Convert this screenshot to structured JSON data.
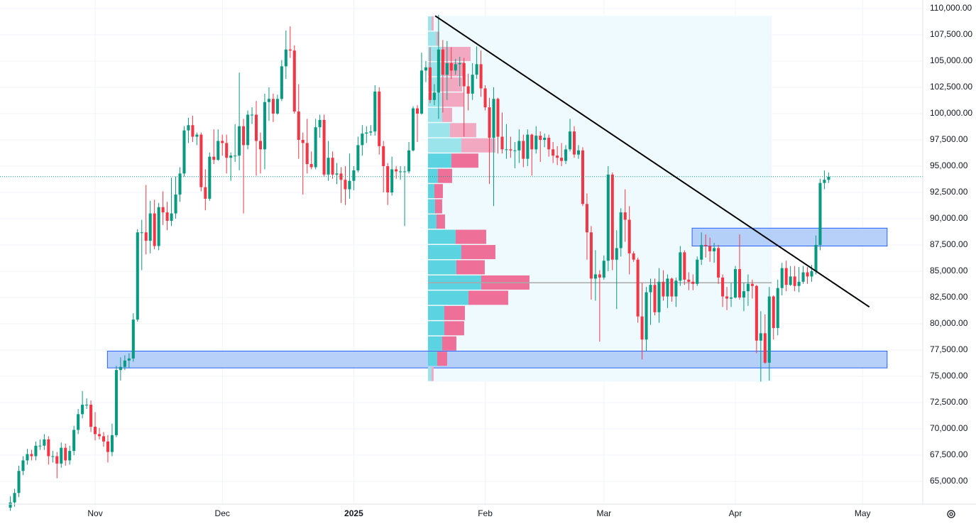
{
  "chart_data": {
    "type": "candlestick",
    "up_color": "#089981",
    "down_color": "#f23645",
    "xlim": [
      -2.44,
      215.2
    ],
    "xticks": [
      {
        "value": 20,
        "label": "Nov"
      },
      {
        "value": 50,
        "label": "Dec"
      },
      {
        "value": 81,
        "label": "2025"
      },
      {
        "value": 112,
        "label": "Feb"
      },
      {
        "value": 140,
        "label": "Mar"
      },
      {
        "value": 171,
        "label": "Apr"
      },
      {
        "value": 201,
        "label": "May"
      }
    ],
    "ylim": [
      62840,
      110810
    ],
    "yticks": [
      {
        "value": 65000,
        "label": "65,000.00"
      },
      {
        "value": 67500,
        "label": "67,500.00"
      },
      {
        "value": 70000,
        "label": "70,000.00"
      },
      {
        "value": 72500,
        "label": "72,500.00"
      },
      {
        "value": 75000,
        "label": "75,000.00"
      },
      {
        "value": 77500,
        "label": "77,500.00"
      },
      {
        "value": 80000,
        "label": "80,000.00"
      },
      {
        "value": 82500,
        "label": "82,500.00"
      },
      {
        "value": 85000,
        "label": "85,000.00"
      },
      {
        "value": 87500,
        "label": "87,500.00"
      },
      {
        "value": 90000,
        "label": "90,000.00"
      },
      {
        "value": 92500,
        "label": "92,500.00"
      },
      {
        "value": 95000,
        "label": "95,000.00"
      },
      {
        "value": 97500,
        "label": "97,500.00"
      },
      {
        "value": 100000,
        "label": "100,000.00"
      },
      {
        "value": 102500,
        "label": "102,500.00"
      },
      {
        "value": 105000,
        "label": "105,000.00"
      },
      {
        "value": 107500,
        "label": "107,500.00"
      },
      {
        "value": 110000,
        "label": "110,000.00"
      }
    ],
    "grid": true,
    "last_price": 94000,
    "candles": [
      [
        62500,
        63600,
        62200,
        63000
      ],
      [
        63000,
        64300,
        62600,
        63900
      ],
      [
        63900,
        66500,
        63500,
        66000
      ],
      [
        66000,
        67400,
        65600,
        67000
      ],
      [
        67000,
        68100,
        66600,
        67600
      ],
      [
        67600,
        68000,
        67000,
        67400
      ],
      [
        67400,
        68800,
        67000,
        68400
      ],
      [
        68400,
        69000,
        68000,
        68400
      ],
      [
        68400,
        69500,
        68000,
        69000
      ],
      [
        69000,
        69300,
        66600,
        67400
      ],
      [
        67400,
        67900,
        66800,
        67400
      ],
      [
        67400,
        67800,
        65300,
        66700
      ],
      [
        66700,
        68700,
        66300,
        68200
      ],
      [
        68200,
        68600,
        66500,
        67000
      ],
      [
        67000,
        68400,
        66600,
        67900
      ],
      [
        67900,
        70300,
        67500,
        69900
      ],
      [
        69900,
        71900,
        69500,
        71400
      ],
      [
        71400,
        73600,
        71000,
        72300
      ],
      [
        72300,
        72900,
        71900,
        72300
      ],
      [
        72300,
        72700,
        69700,
        70200
      ],
      [
        70200,
        71600,
        68900,
        69500
      ],
      [
        69500,
        70100,
        69000,
        69300
      ],
      [
        69300,
        69700,
        68300,
        68800
      ],
      [
        68800,
        69400,
        66800,
        67800
      ],
      [
        67800,
        70500,
        67400,
        69400
      ],
      [
        69400,
        76000,
        69200,
        75600
      ],
      [
        75600,
        76800,
        74600,
        75900
      ],
      [
        75900,
        77000,
        75600,
        76500
      ],
      [
        76500,
        77200,
        75800,
        76700
      ],
      [
        76700,
        81000,
        76400,
        80400
      ],
      [
        80400,
        89000,
        80200,
        88700
      ],
      [
        88700,
        89900,
        85100,
        88700
      ],
      [
        88700,
        93200,
        86600,
        87900
      ],
      [
        87900,
        91700,
        86700,
        90500
      ],
      [
        90500,
        91800,
        87100,
        87400
      ],
      [
        87400,
        91500,
        87000,
        91100
      ],
      [
        91100,
        92600,
        89400,
        90600
      ],
      [
        90600,
        91600,
        88900,
        89800
      ],
      [
        89800,
        93900,
        89300,
        90500
      ],
      [
        90500,
        94000,
        90000,
        92300
      ],
      [
        92300,
        94900,
        91600,
        94300
      ],
      [
        94300,
        98800,
        94000,
        98400
      ],
      [
        98400,
        99600,
        97200,
        98900
      ],
      [
        98900,
        99800,
        97300,
        97800
      ],
      [
        97800,
        98200,
        97000,
        98000
      ],
      [
        98000,
        98200,
        92600,
        93000
      ],
      [
        93000,
        94700,
        90800,
        91900
      ],
      [
        91900,
        96300,
        91700,
        95900
      ],
      [
        95900,
        98500,
        95200,
        95600
      ],
      [
        95600,
        98500,
        95500,
        97400
      ],
      [
        97400,
        98000,
        96000,
        97200
      ],
      [
        97200,
        98000,
        94300,
        95800
      ],
      [
        95800,
        96300,
        93600,
        96000
      ],
      [
        96000,
        99000,
        95400,
        96000
      ],
      [
        96000,
        103900,
        94600,
        98800
      ],
      [
        98800,
        99500,
        90500,
        97000
      ],
      [
        97000,
        100300,
        96600,
        99900
      ],
      [
        99900,
        100600,
        99000,
        99900
      ],
      [
        99900,
        101200,
        94100,
        97400
      ],
      [
        97400,
        98200,
        94300,
        96600
      ],
      [
        96600,
        101900,
        94700,
        101100
      ],
      [
        101100,
        102500,
        99300,
        101400
      ],
      [
        101400,
        101900,
        99200,
        100000
      ],
      [
        100000,
        101800,
        99900,
        101400
      ],
      [
        101400,
        105100,
        101200,
        104500
      ],
      [
        104500,
        107900,
        103300,
        106100
      ],
      [
        106100,
        108300,
        105300,
        106000
      ],
      [
        106000,
        106500,
        100000,
        100200
      ],
      [
        100200,
        102800,
        95700,
        97500
      ],
      [
        97500,
        98200,
        92300,
        97200
      ],
      [
        97200,
        99500,
        94300,
        95200
      ],
      [
        95200,
        96400,
        94700,
        94900
      ],
      [
        94900,
        99500,
        94700,
        98700
      ],
      [
        98700,
        99900,
        97700,
        99400
      ],
      [
        99400,
        99900,
        94000,
        94200
      ],
      [
        94200,
        97400,
        93600,
        95800
      ],
      [
        95800,
        96400,
        93800,
        94200
      ],
      [
        94200,
        95300,
        93300,
        94300
      ],
      [
        94300,
        94900,
        91500,
        93700
      ],
      [
        93700,
        95000,
        91300,
        92800
      ],
      [
        92800,
        96200,
        91900,
        93600
      ],
      [
        93600,
        95000,
        92700,
        94600
      ],
      [
        94600,
        97800,
        94400,
        97000
      ],
      [
        97000,
        98900,
        96000,
        98100
      ],
      [
        98100,
        98800,
        97200,
        98200
      ],
      [
        98200,
        98900,
        97900,
        98300
      ],
      [
        98300,
        102700,
        97900,
        102100
      ],
      [
        102100,
        102500,
        96100,
        96900
      ],
      [
        96900,
        97400,
        92500,
        95000
      ],
      [
        95000,
        95300,
        91300,
        92500
      ],
      [
        92500,
        95900,
        92200,
        94700
      ],
      [
        94700,
        95000,
        93800,
        94500
      ],
      [
        94500,
        95000,
        93700,
        94500
      ],
      [
        94500,
        95000,
        89300,
        94500
      ],
      [
        94500,
        97300,
        94300,
        96500
      ],
      [
        96500,
        100700,
        96400,
        100500
      ],
      [
        100500,
        100800,
        97300,
        100000
      ],
      [
        100000,
        105800,
        99900,
        104100
      ],
      [
        104100,
        105000,
        103000,
        104400
      ],
      [
        104400,
        106300,
        101000,
        101300
      ],
      [
        101300,
        102800,
        100800,
        102000
      ],
      [
        102000,
        109400,
        99500,
        106100
      ],
      [
        106100,
        107000,
        100100,
        103700
      ],
      [
        103700,
        106900,
        101300,
        104800
      ],
      [
        104800,
        106300,
        103300,
        104100
      ],
      [
        104100,
        105200,
        103700,
        104700
      ],
      [
        104700,
        105400,
        102600,
        104800
      ],
      [
        104800,
        105300,
        97800,
        102600
      ],
      [
        102600,
        103800,
        100300,
        101900
      ],
      [
        101900,
        104800,
        101300,
        103700
      ],
      [
        103700,
        106400,
        103300,
        104700
      ],
      [
        104700,
        106000,
        101600,
        102400
      ],
      [
        102400,
        102700,
        100300,
        100600
      ],
      [
        100600,
        101500,
        93300,
        97700
      ],
      [
        97700,
        102500,
        91200,
        101400
      ],
      [
        101400,
        101500,
        96200,
        97800
      ],
      [
        97800,
        100100,
        96200,
        96600
      ],
      [
        96600,
        99000,
        95700,
        96600
      ],
      [
        96600,
        97800,
        95800,
        96500
      ],
      [
        96500,
        97300,
        94800,
        96500
      ],
      [
        96500,
        98500,
        95300,
        97400
      ],
      [
        97400,
        98000,
        94900,
        95700
      ],
      [
        95700,
        98500,
        95000,
        98000
      ],
      [
        98000,
        98100,
        94100,
        96600
      ],
      [
        96600,
        98800,
        96200,
        97900
      ],
      [
        97900,
        98300,
        95400,
        97500
      ],
      [
        97500,
        98100,
        96800,
        97700
      ],
      [
        97700,
        98000,
        95900,
        96600
      ],
      [
        96600,
        97300,
        95300,
        96000
      ],
      [
        96000,
        96900,
        95100,
        95800
      ],
      [
        95800,
        97200,
        95000,
        95500
      ],
      [
        95500,
        97000,
        95200,
        96600
      ],
      [
        96600,
        99500,
        96400,
        98300
      ],
      [
        98300,
        98800,
        95800,
        96100
      ],
      [
        96100,
        97000,
        95700,
        96500
      ],
      [
        96500,
        96800,
        91200,
        91400
      ],
      [
        91400,
        92400,
        86100,
        88700
      ],
      [
        88700,
        89300,
        82300,
        84300
      ],
      [
        84300,
        87000,
        82200,
        84700
      ],
      [
        84700,
        85100,
        78300,
        84400
      ],
      [
        84400,
        86500,
        84200,
        86000
      ],
      [
        86000,
        95000,
        85000,
        94200
      ],
      [
        94200,
        94400,
        85100,
        86100
      ],
      [
        86100,
        88900,
        81400,
        87200
      ],
      [
        87200,
        91000,
        86400,
        90600
      ],
      [
        90600,
        92800,
        87800,
        89900
      ],
      [
        89900,
        91200,
        84700,
        86700
      ],
      [
        86700,
        86900,
        85900,
        86100
      ],
      [
        86100,
        86300,
        80100,
        80700
      ],
      [
        80700,
        83900,
        76600,
        78500
      ],
      [
        78500,
        83500,
        77400,
        83000
      ],
      [
        83000,
        84300,
        79900,
        83700
      ],
      [
        83700,
        84300,
        80800,
        81100
      ],
      [
        81100,
        85300,
        80100,
        84000
      ],
      [
        84000,
        85100,
        82200,
        82600
      ],
      [
        82600,
        84700,
        81500,
        84300
      ],
      [
        84300,
        84400,
        82100,
        82600
      ],
      [
        82600,
        84400,
        81600,
        84100
      ],
      [
        84100,
        87400,
        83600,
        86800
      ],
      [
        86800,
        87000,
        83700,
        84200
      ],
      [
        84200,
        84900,
        83200,
        84000
      ],
      [
        84000,
        84700,
        83200,
        83800
      ],
      [
        83800,
        86400,
        83600,
        86100
      ],
      [
        86100,
        88700,
        85600,
        87500
      ],
      [
        87500,
        88500,
        86300,
        87400
      ],
      [
        87400,
        88200,
        85900,
        86900
      ],
      [
        86900,
        87700,
        85800,
        87200
      ],
      [
        87200,
        87500,
        83800,
        84400
      ],
      [
        84400,
        84700,
        81600,
        82600
      ],
      [
        82600,
        83500,
        81300,
        82400
      ],
      [
        82400,
        83900,
        81600,
        82500
      ],
      [
        82500,
        85500,
        82400,
        85200
      ],
      [
        85200,
        88500,
        82300,
        82500
      ],
      [
        82500,
        83900,
        81200,
        83100
      ],
      [
        83100,
        84700,
        81700,
        83800
      ],
      [
        83800,
        84200,
        82400,
        83600
      ],
      [
        83600,
        83700,
        77200,
        78400
      ],
      [
        78400,
        81200,
        74500,
        79100
      ],
      [
        79100,
        80900,
        76200,
        76300
      ],
      [
        76300,
        83500,
        74600,
        82600
      ],
      [
        82600,
        82700,
        78500,
        79600
      ],
      [
        79600,
        84200,
        78900,
        83400
      ],
      [
        83400,
        85800,
        82700,
        85300
      ],
      [
        85300,
        86000,
        83100,
        83700
      ],
      [
        83700,
        85500,
        83600,
        84500
      ],
      [
        84500,
        85500,
        83100,
        83600
      ],
      [
        83600,
        85400,
        83000,
        84000
      ],
      [
        84000,
        85500,
        83800,
        84900
      ],
      [
        84900,
        85400,
        83800,
        84500
      ],
      [
        84500,
        85600,
        84000,
        85000
      ],
      [
        85000,
        88400,
        84700,
        87500
      ],
      [
        87500,
        93800,
        87000,
        93400
      ],
      [
        93400,
        94600,
        92800,
        93700
      ],
      [
        93700,
        94400,
        93400,
        94000
      ]
    ],
    "volume_profile": {
      "start": 98.5,
      "end": 179.6,
      "bins": [
        74500,
        75950,
        77400,
        78850,
        80300,
        81750,
        83200,
        84650,
        86100,
        87550,
        89000,
        90450,
        91900,
        93350,
        94800,
        96250,
        97700,
        99150,
        100600,
        102050,
        103500,
        104950,
        106400,
        107850,
        109300
      ],
      "up": [
        5,
        13,
        20,
        23,
        23,
        57,
        75,
        40,
        47,
        39,
        12,
        10,
        9,
        14,
        33,
        47,
        31,
        20,
        20,
        18,
        22,
        20,
        12,
        5
      ],
      "down": [
        3,
        14,
        20,
        28,
        29,
        56,
        68,
        40,
        48,
        43,
        12,
        10,
        12,
        20,
        38,
        48,
        37,
        14,
        30,
        30,
        30,
        40,
        4,
        3
      ],
      "value_area": [
        75950,
        96250
      ],
      "poc": 83900,
      "up_color": "#5cd3e0",
      "down_color": "#ee6f98",
      "up_color_outside": "#9be4ec",
      "down_color_outside": "#f3a8c2",
      "box_color": "#eefafd"
    },
    "zones": [
      {
        "low": 75800,
        "high": 77400,
        "start": 22.9,
        "end": 206.8
      },
      {
        "low": 87400,
        "high": 89100,
        "start": 160.8,
        "end": 206.8
      }
    ],
    "zone_color": "#a9c8f8",
    "trendline": {
      "start": [
        100.2,
        109300
      ],
      "end": [
        202.6,
        81600
      ]
    }
  }
}
